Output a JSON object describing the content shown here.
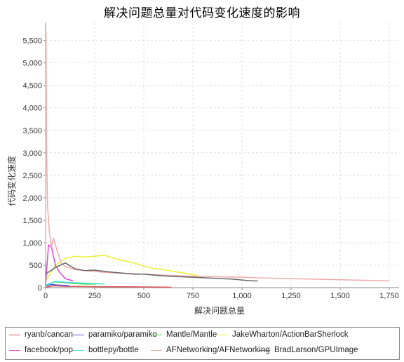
{
  "chart_data": {
    "type": "line",
    "title": "解决问题总量对代码变化速度的影响",
    "xlabel": "解决问题总量",
    "ylabel": "代码变化速度",
    "xlim": [
      0,
      1800
    ],
    "ylim": [
      0,
      5900
    ],
    "xticks": [
      "0",
      "250",
      "500",
      "750",
      "1,000",
      "1,250",
      "1,500",
      "1,750"
    ],
    "xtick_values": [
      0,
      250,
      500,
      750,
      1000,
      1250,
      1500,
      1750
    ],
    "yticks": [
      "0",
      "500",
      "1,000",
      "1,500",
      "2,000",
      "2,500",
      "3,000",
      "3,500",
      "4,000",
      "4,500",
      "5,000",
      "5,500"
    ],
    "ytick_values": [
      0,
      500,
      1000,
      1500,
      2000,
      2500,
      3000,
      3500,
      4000,
      4500,
      5000,
      5500
    ],
    "grid": true,
    "legend_position": "bottom",
    "series": [
      {
        "name": "ryanb/cancan",
        "color": "#e05555",
        "x": [
          0,
          40,
          100,
          200,
          300,
          400,
          500,
          600,
          640
        ],
        "y": [
          10,
          40,
          30,
          25,
          20,
          18,
          15,
          12,
          10
        ]
      },
      {
        "name": "paramiko/paramiko",
        "color": "#5555dd",
        "x": [
          0,
          30,
          60,
          90,
          120
        ],
        "y": [
          40,
          70,
          60,
          50,
          40
        ]
      },
      {
        "name": "Mantle/Mantle",
        "color": "#44dd44",
        "x": [
          0,
          50,
          100,
          150,
          200,
          260
        ],
        "y": [
          60,
          130,
          110,
          90,
          80,
          80
        ]
      },
      {
        "name": "JakeWharton/ActionBarSherlock",
        "color": "#eeee33",
        "x": [
          0,
          50,
          100,
          150,
          200,
          250,
          300,
          350,
          400,
          450,
          500,
          550,
          600,
          650,
          700,
          750,
          800
        ],
        "y": [
          150,
          500,
          650,
          700,
          680,
          700,
          720,
          650,
          600,
          550,
          480,
          430,
          400,
          360,
          330,
          290,
          230
        ]
      },
      {
        "name": "facebook/pop",
        "color": "#dd44dd",
        "x": [
          0,
          15,
          30,
          50,
          70,
          100,
          140
        ],
        "y": [
          80,
          950,
          900,
          500,
          350,
          200,
          150
        ]
      },
      {
        "name": "bottlepy/bottle",
        "color": "#44dddd",
        "x": [
          0,
          50,
          100,
          150,
          200,
          250,
          300
        ],
        "y": [
          50,
          140,
          120,
          110,
          100,
          90,
          80
        ]
      },
      {
        "name": "AFNetworking/AFNetworking",
        "color": "#f2a9a9",
        "x": [
          0,
          2,
          5,
          10,
          20,
          30,
          40,
          60,
          80,
          100,
          150,
          200,
          300,
          400,
          500,
          600,
          700,
          800,
          900,
          1000,
          1100,
          1200,
          1300,
          1400,
          1500,
          1600,
          1750
        ],
        "y": [
          600,
          5700,
          3000,
          1800,
          1200,
          900,
          1100,
          800,
          550,
          470,
          400,
          380,
          340,
          320,
          300,
          280,
          260,
          250,
          240,
          230,
          215,
          205,
          195,
          185,
          175,
          165,
          150
        ]
      },
      {
        "name": "BradLarson/GPUImage",
        "color": "#666666",
        "x": [
          0,
          50,
          100,
          150,
          200,
          250,
          300,
          350,
          400,
          450,
          500,
          550,
          600,
          650,
          700,
          750,
          800,
          850,
          900,
          950,
          1000,
          1050,
          1080
        ],
        "y": [
          300,
          450,
          550,
          420,
          380,
          390,
          360,
          340,
          320,
          300,
          300,
          280,
          260,
          250,
          240,
          230,
          220,
          210,
          200,
          190,
          170,
          150,
          150
        ]
      }
    ]
  }
}
